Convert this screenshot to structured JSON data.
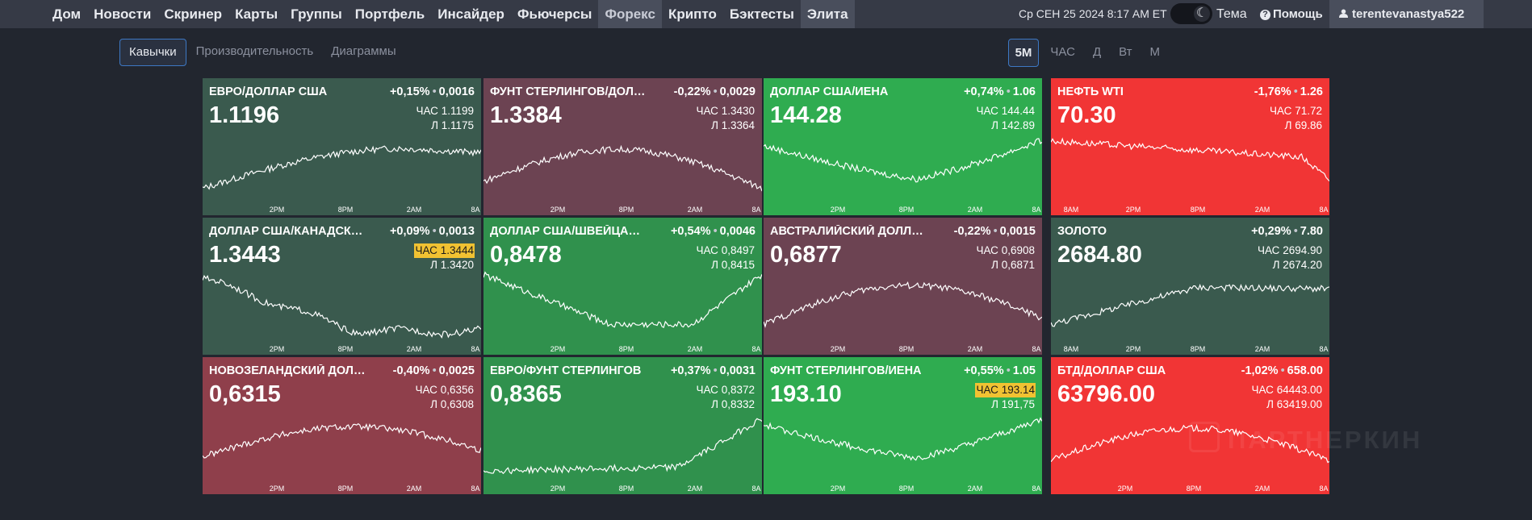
{
  "nav": {
    "items": [
      "Дом",
      "Новости",
      "Скринер",
      "Карты",
      "Группы",
      "Портфель",
      "Инсайдер",
      "Фьючерсы",
      "Форекс",
      "Крипто",
      "Бэктесты",
      "Элита"
    ],
    "active": "Форекс",
    "datetime": "Ср СЕН 25 2024 8:17 AM ET",
    "theme_label": "Тема",
    "help_label": "Помощь",
    "username": "terentevanastya522"
  },
  "subnav": {
    "tabs": [
      "Кавычки",
      "Производительность",
      "Диаграммы"
    ],
    "active": "Кавычки"
  },
  "timeframes": {
    "options": [
      "5M",
      "ЧАС",
      "Д",
      "Вт",
      "М"
    ],
    "active": "5M"
  },
  "colors": {
    "neutral_up": "#3a5a4e",
    "neutral_down": "#6c4352",
    "strong_up": "#2fac50",
    "mid_up": "#30914d",
    "strong_down": "#f13535",
    "mid_down": "#8f3f4b",
    "highlight": "#f1c232"
  },
  "tiles": [
    {
      "name": "ЕВРО/ДОЛЛАР США",
      "pct": "+0,15%",
      "abs": "0,0016",
      "price": "1.1196",
      "high_label": "ЧАС",
      "high": "1.1199",
      "low_label": "Л",
      "low": "1.1175",
      "high_hl": false,
      "ticks": [
        "2PM",
        "8PM",
        "2AM",
        "8A"
      ],
      "trend": "up",
      "color": "#3a5a4e"
    },
    {
      "name": "ФУНТ СТЕРЛИНГОВ/ДОЛЛАР США",
      "pct": "-0,22%",
      "abs": "0,0029",
      "price": "1.3384",
      "high_label": "ЧАС",
      "high": "1.3430",
      "low_label": "Л",
      "low": "1.3364",
      "high_hl": false,
      "ticks": [
        "2PM",
        "8PM",
        "2AM",
        "8A"
      ],
      "trend": "arch",
      "color": "#6c4352"
    },
    {
      "name": "ДОЛЛАР США/ИЕНА",
      "pct": "+0,74%",
      "abs": "1.06",
      "price": "144.28",
      "high_label": "ЧАС",
      "high": "144.44",
      "low_label": "Л",
      "low": "142.89",
      "high_hl": false,
      "ticks": [
        "2PM",
        "8PM",
        "2AM",
        "8A"
      ],
      "trend": "valley",
      "color": "#2fac50"
    },
    {
      "name": "НЕФТЬ WTI",
      "pct": "-1,76%",
      "abs": "1.26",
      "price": "70.30",
      "high_label": "ЧАС",
      "high": "71.72",
      "low_label": "Л",
      "low": "69.86",
      "high_hl": false,
      "ticks": [
        "8AM",
        "2PM",
        "8PM",
        "2AM",
        "8A"
      ],
      "trend": "down",
      "color": "#f13535"
    },
    {
      "name": "ДОЛЛАР США/КАНАДСКИЙ ДОЛЛАР",
      "pct": "+0,09%",
      "abs": "0,0013",
      "price": "1.3443",
      "high_label": "ЧАС",
      "high": "1.3444",
      "low_label": "Л",
      "low": "1.3420",
      "high_hl": true,
      "ticks": [
        "2PM",
        "8PM",
        "2AM",
        "8A"
      ],
      "trend": "downflat",
      "color": "#3a5a4e"
    },
    {
      "name": "ДОЛЛАР США/ШВЕЙЦАРСКИЙ ФРАНК",
      "pct": "+0,54%",
      "abs": "0,0046",
      "price": "0,8478",
      "high_label": "ЧАС",
      "high": "0,8497",
      "low_label": "Л",
      "low": "0,8415",
      "high_hl": false,
      "ticks": [
        "2PM",
        "8PM",
        "2AM",
        "8A"
      ],
      "trend": "valley2",
      "color": "#30914d"
    },
    {
      "name": "АВСТРАЛИЙСКИЙ ДОЛЛАР/ДОЛЛАР США",
      "pct": "-0,22%",
      "abs": "0,0015",
      "price": "0,6877",
      "high_label": "ЧАС",
      "high": "0,6908",
      "low_label": "Л",
      "low": "0,6871",
      "high_hl": false,
      "ticks": [
        "2PM",
        "8PM",
        "2AM",
        "8A"
      ],
      "trend": "arch2",
      "color": "#6c4352"
    },
    {
      "name": "ЗОЛОТО",
      "pct": "+0,29%",
      "abs": "7.80",
      "price": "2684.80",
      "high_label": "ЧАС",
      "high": "2694.90",
      "low_label": "Л",
      "low": "2674.20",
      "high_hl": false,
      "ticks": [
        "8AM",
        "2PM",
        "8PM",
        "2AM",
        "8A"
      ],
      "trend": "up2",
      "color": "#3a5a4e"
    },
    {
      "name": "НОВОЗЕЛАНДСКИЙ ДОЛЛАР/ДОЛЛАР США",
      "pct": "-0,40%",
      "abs": "0,0025",
      "price": "0,6315",
      "high_label": "ЧАС",
      "high": "0,6356",
      "low_label": "Л",
      "low": "0,6308",
      "high_hl": false,
      "ticks": [
        "2PM",
        "8PM",
        "2AM",
        "8A"
      ],
      "trend": "arch3",
      "color": "#8f3f4b"
    },
    {
      "name": "ЕВРО/ФУНТ СТЕРЛИНГОВ",
      "pct": "+0,37%",
      "abs": "0,0031",
      "price": "0,8365",
      "high_label": "ЧАС",
      "high": "0,8372",
      "low_label": "Л",
      "low": "0,8332",
      "high_hl": false,
      "ticks": [
        "2PM",
        "8PM",
        "2AM",
        "8A"
      ],
      "trend": "up3",
      "color": "#30914d"
    },
    {
      "name": "ФУНТ СТЕРЛИНГОВ/ИЕНА",
      "pct": "+0,55%",
      "abs": "1.05",
      "price": "193.10",
      "high_label": "ЧАС",
      "high": "193.14",
      "low_label": "Л",
      "low": "191,75",
      "high_hl": true,
      "ticks": [
        "2PM",
        "8PM",
        "2AM",
        "8A"
      ],
      "trend": "valley",
      "color": "#2fac50"
    },
    {
      "name": "БТД/ДОЛЛАР США",
      "pct": "-1,02%",
      "abs": "658.00",
      "price": "63796.00",
      "high_label": "ЧАС",
      "high": "64443.00",
      "low_label": "Л",
      "low": "63419.00",
      "high_hl": false,
      "ticks": [
        "2PM",
        "8PM",
        "2AM",
        "8A"
      ],
      "trend": "arch4",
      "color": "#f13535"
    }
  ],
  "watermark": "ПАРТНЕРКИН"
}
